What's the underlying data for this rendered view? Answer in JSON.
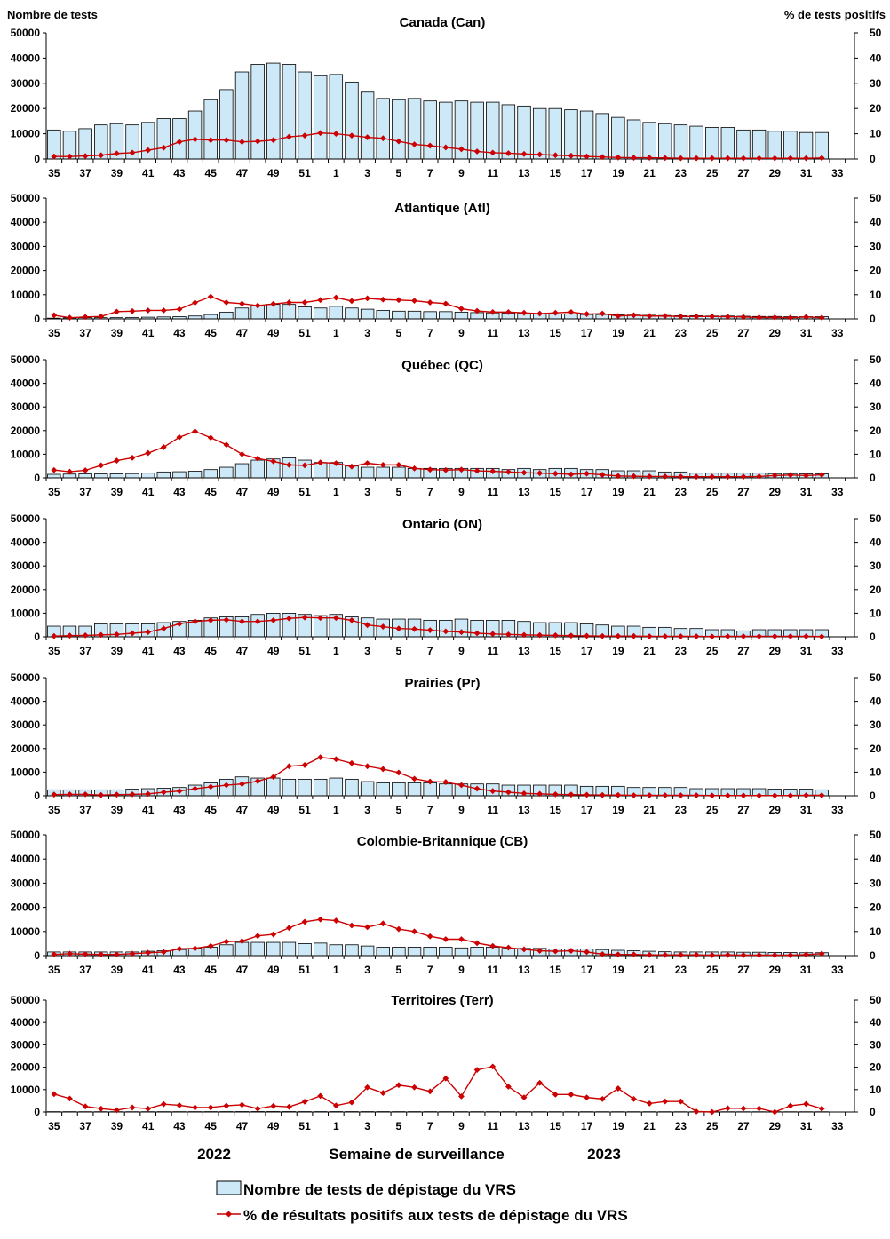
{
  "header": {
    "left_axis_title": "Nombre de tests",
    "right_axis_title": "% de tests positifs"
  },
  "footer": {
    "year_left": "2022",
    "x_axis_title": "Semaine de surveillance",
    "year_right": "2023"
  },
  "legend": {
    "bars_label": "Nombre de tests de dépistage du VRS",
    "line_label": "% de résultats positifs aux tests de dépistage du VRS"
  },
  "colors": {
    "bar_fill": "#cde9f8",
    "bar_stroke": "#000000",
    "line": "#cc0000"
  },
  "axes": {
    "x_tick_labels": [
      "35",
      "37",
      "39",
      "41",
      "43",
      "45",
      "47",
      "49",
      "51",
      "1",
      "3",
      "5",
      "7",
      "9",
      "11",
      "13",
      "15",
      "17",
      "19",
      "21",
      "23",
      "25",
      "27",
      "29",
      "31",
      "33"
    ],
    "y_left_ticks": [
      "0",
      "10000",
      "20000",
      "30000",
      "40000",
      "50000"
    ],
    "y_right_ticks": [
      "0",
      "10",
      "20",
      "30",
      "40",
      "50"
    ]
  },
  "chart_data": [
    {
      "type": "bar",
      "title": "Canada (Can)",
      "categories": [
        35,
        36,
        37,
        38,
        39,
        40,
        41,
        42,
        43,
        44,
        45,
        46,
        47,
        48,
        49,
        50,
        51,
        52,
        1,
        2,
        3,
        4,
        5,
        6,
        7,
        8,
        9,
        10,
        11,
        12,
        13,
        14,
        15,
        16,
        17,
        18,
        19,
        20,
        21,
        22,
        23,
        24,
        25,
        26,
        27,
        28,
        29,
        30,
        31,
        32
      ],
      "ylim": [
        0,
        50000
      ],
      "y2lim": [
        0,
        50
      ],
      "tests": [
        11500,
        11000,
        12000,
        13500,
        14000,
        13500,
        14500,
        16000,
        16000,
        19000,
        23500,
        27500,
        34500,
        37500,
        38000,
        37500,
        34500,
        33000,
        33500,
        30500,
        26500,
        24000,
        23500,
        24000,
        23000,
        22500,
        23000,
        22500,
        22500,
        21500,
        21000,
        20000,
        20000,
        19500,
        19000,
        18000,
        16500,
        15500,
        14500,
        14000,
        13500,
        13000,
        12500,
        12500,
        11500,
        11500,
        11000,
        11000,
        10500,
        10500
      ],
      "pct_positive": [
        1.0,
        1.0,
        1.2,
        1.5,
        2.2,
        2.5,
        3.5,
        4.5,
        6.8,
        7.8,
        7.5,
        7.5,
        6.8,
        7.0,
        7.5,
        8.8,
        9.3,
        10.3,
        10.0,
        9.3,
        8.6,
        8.2,
        7.0,
        5.8,
        5.3,
        4.6,
        3.9,
        3.0,
        2.5,
        2.3,
        2.0,
        1.8,
        1.5,
        1.3,
        1.0,
        0.8,
        0.6,
        0.5,
        0.5,
        0.4,
        0.3,
        0.3,
        0.3,
        0.3,
        0.3,
        0.3,
        0.3,
        0.3,
        0.3,
        0.4
      ]
    },
    {
      "type": "bar",
      "title": "Atlantique (Atl)",
      "categories": [
        35,
        36,
        37,
        38,
        39,
        40,
        41,
        42,
        43,
        44,
        45,
        46,
        47,
        48,
        49,
        50,
        51,
        52,
        1,
        2,
        3,
        4,
        5,
        6,
        7,
        8,
        9,
        10,
        11,
        12,
        13,
        14,
        15,
        16,
        17,
        18,
        19,
        20,
        21,
        22,
        23,
        24,
        25,
        26,
        27,
        28,
        29,
        30,
        31,
        32
      ],
      "ylim": [
        0,
        50000
      ],
      "y2lim": [
        0,
        50
      ],
      "tests": [
        300,
        400,
        500,
        500,
        500,
        600,
        700,
        800,
        900,
        1200,
        1800,
        2800,
        4500,
        5500,
        6000,
        6000,
        5000,
        4500,
        5200,
        4500,
        4000,
        3500,
        3200,
        3200,
        3000,
        3000,
        2800,
        2600,
        2500,
        2400,
        2200,
        2200,
        2000,
        2000,
        1800,
        1800,
        1700,
        1600,
        1500,
        1400,
        1300,
        1300,
        1200,
        1200,
        1100,
        1000,
        1000,
        900,
        900,
        900
      ],
      "pct_positive": [
        1.5,
        0.5,
        0.8,
        1.0,
        3.0,
        3.2,
        3.5,
        3.5,
        4.0,
        6.7,
        9.2,
        6.8,
        6.3,
        5.5,
        6.2,
        6.8,
        6.8,
        7.8,
        8.8,
        7.4,
        8.5,
        8.0,
        7.8,
        7.5,
        6.8,
        6.3,
        4.2,
        3.3,
        2.8,
        2.8,
        2.5,
        2.2,
        2.5,
        2.8,
        2.0,
        2.2,
        1.2,
        1.5,
        1.2,
        1.2,
        1.0,
        1.0,
        1.0,
        0.9,
        0.8,
        0.6,
        0.6,
        0.5,
        0.8,
        0.5
      ]
    },
    {
      "type": "bar",
      "title": "Québec (QC)",
      "categories": [
        35,
        36,
        37,
        38,
        39,
        40,
        41,
        42,
        43,
        44,
        45,
        46,
        47,
        48,
        49,
        50,
        51,
        52,
        1,
        2,
        3,
        4,
        5,
        6,
        7,
        8,
        9,
        10,
        11,
        12,
        13,
        14,
        15,
        16,
        17,
        18,
        19,
        20,
        21,
        22,
        23,
        24,
        25,
        26,
        27,
        28,
        29,
        30,
        31,
        32
      ],
      "ylim": [
        0,
        50000
      ],
      "y2lim": [
        0,
        50
      ],
      "tests": [
        1500,
        1600,
        1700,
        1700,
        1700,
        1800,
        2000,
        2500,
        2600,
        2800,
        3500,
        4500,
        6000,
        7500,
        8000,
        8500,
        7500,
        6500,
        6500,
        5000,
        4500,
        4500,
        4500,
        4000,
        4000,
        4000,
        4000,
        4000,
        4000,
        3500,
        4000,
        3500,
        4000,
        4000,
        3500,
        3500,
        3000,
        3000,
        3000,
        2500,
        2500,
        2000,
        2000,
        2000,
        2000,
        2000,
        1800,
        1800,
        1700,
        1700
      ],
      "pct_positive": [
        3.3,
        2.6,
        3.2,
        5.3,
        7.3,
        8.5,
        10.5,
        13.0,
        17.2,
        19.7,
        17.0,
        14.0,
        10.0,
        8.2,
        7.0,
        5.5,
        5.3,
        6.5,
        6.2,
        4.8,
        6.2,
        5.5,
        5.5,
        4.0,
        3.5,
        3.3,
        3.5,
        3.0,
        2.8,
        2.5,
        2.2,
        2.0,
        1.8,
        1.5,
        1.8,
        1.3,
        0.8,
        0.7,
        0.6,
        0.6,
        0.5,
        0.5,
        0.5,
        0.5,
        0.5,
        0.6,
        1.0,
        1.2,
        1.0,
        1.3
      ]
    },
    {
      "type": "bar",
      "title": "Ontario (ON)",
      "categories": [
        35,
        36,
        37,
        38,
        39,
        40,
        41,
        42,
        43,
        44,
        45,
        46,
        47,
        48,
        49,
        50,
        51,
        52,
        1,
        2,
        3,
        4,
        5,
        6,
        7,
        8,
        9,
        10,
        11,
        12,
        13,
        14,
        15,
        16,
        17,
        18,
        19,
        20,
        21,
        22,
        23,
        24,
        25,
        26,
        27,
        28,
        29,
        30,
        31,
        32
      ],
      "ylim": [
        0,
        50000
      ],
      "y2lim": [
        0,
        50
      ],
      "tests": [
        4500,
        4500,
        4500,
        5500,
        5500,
        5500,
        5500,
        6000,
        6500,
        7000,
        8000,
        8500,
        8500,
        9500,
        10000,
        10000,
        9500,
        9000,
        9500,
        8500,
        8000,
        7500,
        7500,
        7500,
        7000,
        7000,
        7500,
        7000,
        7000,
        7000,
        6500,
        6000,
        6000,
        6000,
        5500,
        5000,
        4500,
        4500,
        4000,
        4000,
        3500,
        3500,
        3000,
        3000,
        2500,
        3000,
        3000,
        3000,
        3000,
        3000
      ],
      "pct_positive": [
        0.3,
        0.5,
        0.6,
        0.8,
        1.0,
        1.5,
        2.0,
        3.5,
        5.5,
        6.5,
        7.0,
        7.2,
        6.5,
        6.5,
        7.0,
        7.8,
        8.2,
        8.0,
        8.0,
        7.0,
        5.0,
        4.3,
        3.5,
        3.3,
        2.8,
        2.3,
        2.0,
        1.5,
        1.2,
        1.0,
        0.8,
        0.7,
        0.6,
        0.5,
        0.4,
        0.3,
        0.3,
        0.3,
        0.2,
        0.2,
        0.2,
        0.2,
        0.1,
        0.2,
        0.2,
        0.2,
        0.2,
        0.2,
        0.2,
        0.1
      ]
    },
    {
      "type": "bar",
      "title": "Prairies (Pr)",
      "categories": [
        35,
        36,
        37,
        38,
        39,
        40,
        41,
        42,
        43,
        44,
        45,
        46,
        47,
        48,
        49,
        50,
        51,
        52,
        1,
        2,
        3,
        4,
        5,
        6,
        7,
        8,
        9,
        10,
        11,
        12,
        13,
        14,
        15,
        16,
        17,
        18,
        19,
        20,
        21,
        22,
        23,
        24,
        25,
        26,
        27,
        28,
        29,
        30,
        31,
        32
      ],
      "ylim": [
        0,
        50000
      ],
      "y2lim": [
        0,
        50
      ],
      "tests": [
        2500,
        2500,
        2500,
        2500,
        2500,
        2800,
        3000,
        3200,
        3500,
        4500,
        5500,
        7000,
        8000,
        7500,
        7500,
        7000,
        7000,
        7000,
        7500,
        7000,
        6000,
        5500,
        5500,
        5500,
        5500,
        5000,
        5000,
        5000,
        5000,
        4500,
        4500,
        4500,
        4500,
        4500,
        4000,
        4000,
        4000,
        3500,
        3500,
        3500,
        3500,
        3000,
        3000,
        3000,
        3000,
        3000,
        2800,
        2800,
        2800,
        2500
      ],
      "pct_positive": [
        0.5,
        0.6,
        0.6,
        0.3,
        0.5,
        0.6,
        0.8,
        1.5,
        2.0,
        3.0,
        3.8,
        4.5,
        5.0,
        6.2,
        8.0,
        12.5,
        13.0,
        16.3,
        15.5,
        13.8,
        12.5,
        11.3,
        9.8,
        7.2,
        6.0,
        5.8,
        4.5,
        3.0,
        2.0,
        1.5,
        1.0,
        0.8,
        0.6,
        0.5,
        0.4,
        0.3,
        0.3,
        0.2,
        0.2,
        0.2,
        0.2,
        0.2,
        0.1,
        0.1,
        0.1,
        0.1,
        0.1,
        0.1,
        0.2,
        0.2
      ]
    },
    {
      "type": "bar",
      "title": "Colombie-Britannique (CB)",
      "categories": [
        35,
        36,
        37,
        38,
        39,
        40,
        41,
        42,
        43,
        44,
        45,
        46,
        47,
        48,
        49,
        50,
        51,
        52,
        1,
        2,
        3,
        4,
        5,
        6,
        7,
        8,
        9,
        10,
        11,
        12,
        13,
        14,
        15,
        16,
        17,
        18,
        19,
        20,
        21,
        22,
        23,
        24,
        25,
        26,
        27,
        28,
        29,
        30,
        31,
        32
      ],
      "ylim": [
        0,
        50000
      ],
      "y2lim": [
        0,
        50
      ],
      "tests": [
        1500,
        1500,
        1500,
        1500,
        1500,
        1500,
        1800,
        2000,
        2500,
        3000,
        3500,
        4500,
        5500,
        5500,
        5500,
        5500,
        5000,
        5200,
        4500,
        4500,
        4000,
        3500,
        3500,
        3500,
        3500,
        3500,
        3200,
        3500,
        3500,
        3000,
        3000,
        3000,
        2800,
        2800,
        2800,
        2500,
        2200,
        2000,
        1800,
        1600,
        1500,
        1500,
        1500,
        1500,
        1400,
        1400,
        1300,
        1300,
        1200,
        1200
      ],
      "pct_positive": [
        0.5,
        0.8,
        0.6,
        0.5,
        0.5,
        0.8,
        1.2,
        1.5,
        2.8,
        3.0,
        4.0,
        5.8,
        6.0,
        8.2,
        8.8,
        11.5,
        14.0,
        15.0,
        14.5,
        12.5,
        11.8,
        13.3,
        11.0,
        10.0,
        8.0,
        6.8,
        6.8,
        5.2,
        4.0,
        3.3,
        2.6,
        2.0,
        1.8,
        2.0,
        1.5,
        0.6,
        0.5,
        0.5,
        0.3,
        0.3,
        0.3,
        0.3,
        0.2,
        0.3,
        0.2,
        0.2,
        0.2,
        0.2,
        0.4,
        0.8
      ]
    },
    {
      "type": "bar",
      "title": "Territoires (Terr)",
      "categories": [
        35,
        36,
        37,
        38,
        39,
        40,
        41,
        42,
        43,
        44,
        45,
        46,
        47,
        48,
        49,
        50,
        51,
        52,
        1,
        2,
        3,
        4,
        5,
        6,
        7,
        8,
        9,
        10,
        11,
        12,
        13,
        14,
        15,
        16,
        17,
        18,
        19,
        20,
        21,
        22,
        23,
        24,
        25,
        26,
        27,
        28,
        29,
        30,
        31,
        32
      ],
      "ylim": [
        0,
        50000
      ],
      "y2lim": [
        0,
        50
      ],
      "tests": [
        150,
        150,
        140,
        140,
        130,
        130,
        140,
        150,
        150,
        160,
        170,
        180,
        190,
        200,
        200,
        190,
        180,
        170,
        180,
        180,
        170,
        170,
        160,
        160,
        160,
        150,
        150,
        150,
        150,
        150,
        150,
        140,
        140,
        140,
        140,
        130,
        130,
        130,
        130,
        130,
        120,
        120,
        120,
        120,
        120,
        120,
        120,
        120,
        120,
        120
      ],
      "pct_positive": [
        8.0,
        6.0,
        2.5,
        1.5,
        0.8,
        2.0,
        1.5,
        3.5,
        3.0,
        2.0,
        2.0,
        2.8,
        3.2,
        1.5,
        2.7,
        2.3,
        4.6,
        7.2,
        2.9,
        4.3,
        11.0,
        8.5,
        12.0,
        11.0,
        9.2,
        15.0,
        7.0,
        18.8,
        20.3,
        11.3,
        6.5,
        13.0,
        7.8,
        7.8,
        6.5,
        5.8,
        10.5,
        5.8,
        3.8,
        4.7,
        4.7,
        0.2,
        0.0,
        1.7,
        1.6,
        1.6,
        0.0,
        2.8,
        3.6,
        1.5
      ]
    }
  ]
}
